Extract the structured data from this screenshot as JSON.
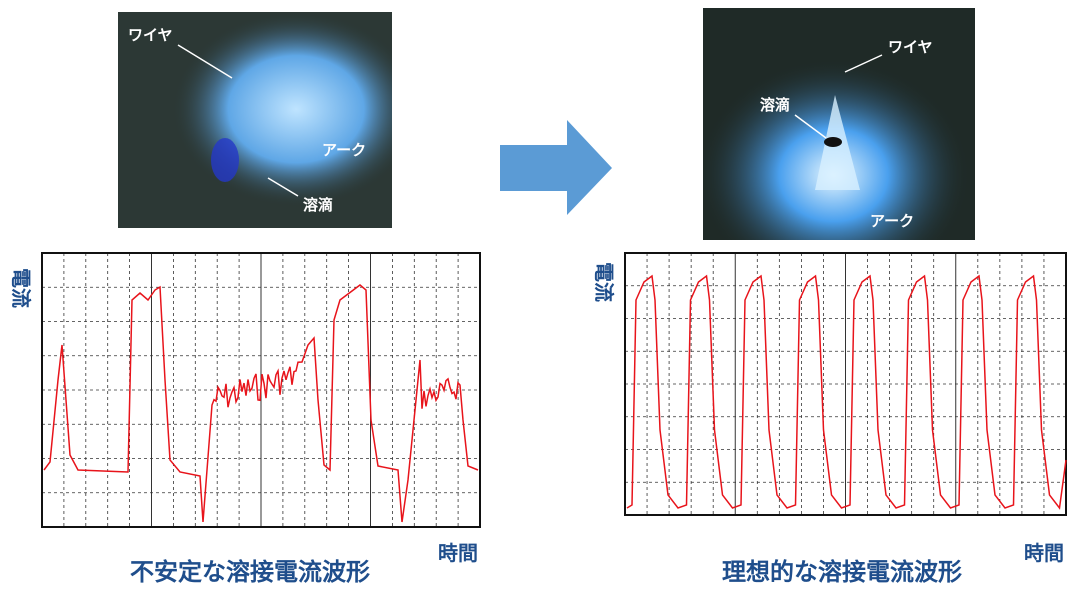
{
  "left": {
    "photo": {
      "wire": "ワイヤ",
      "arc": "アーク",
      "droplet": "溶滴"
    },
    "waveform": {
      "y_label": "電流",
      "x_label": "時間"
    },
    "caption": "不安定な溶接電流波形"
  },
  "right": {
    "photo": {
      "wire": "ワイヤ",
      "droplet": "溶滴",
      "arc": "アーク"
    },
    "waveform": {
      "y_label": "電流",
      "x_label": "時間"
    },
    "caption": "理想的な溶接電流波形"
  }
}
